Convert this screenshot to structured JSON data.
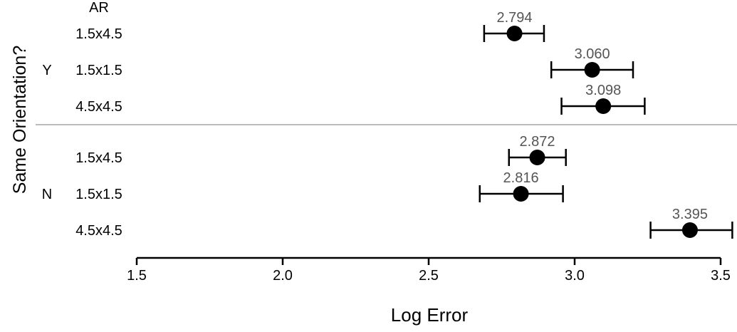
{
  "chart_data": {
    "type": "scatter",
    "title": "",
    "xlabel": "Log Error",
    "ylabel": "Same Orientation?",
    "row_header": "AR",
    "xlim": [
      1.5,
      3.55
    ],
    "x_ticks": [
      "1.5",
      "2.0",
      "2.5",
      "3.0",
      "3.5"
    ],
    "grid": false,
    "legend": "none",
    "groups": [
      {
        "label": "Y",
        "rows": [
          {
            "ar": "1.5x4.5",
            "value": 2.794,
            "value_label": "2.794",
            "ci": [
              2.69,
              2.895
            ]
          },
          {
            "ar": "1.5x1.5",
            "value": 3.06,
            "value_label": "3.060",
            "ci": [
              2.92,
              3.2
            ]
          },
          {
            "ar": "4.5x4.5",
            "value": 3.098,
            "value_label": "3.098",
            "ci": [
              2.955,
              3.24
            ]
          }
        ]
      },
      {
        "label": "N",
        "rows": [
          {
            "ar": "1.5x4.5",
            "value": 2.872,
            "value_label": "2.872",
            "ci": [
              2.775,
              2.97
            ]
          },
          {
            "ar": "1.5x1.5",
            "value": 2.816,
            "value_label": "2.816",
            "ci": [
              2.675,
              2.96
            ]
          },
          {
            "ar": "4.5x4.5",
            "value": 3.395,
            "value_label": "3.395",
            "ci": [
              3.26,
              3.54
            ]
          }
        ]
      }
    ]
  },
  "colors": {
    "point": "#000000",
    "value_text": "#555555",
    "separator": "#bbbbbb",
    "axis": "#000000"
  }
}
